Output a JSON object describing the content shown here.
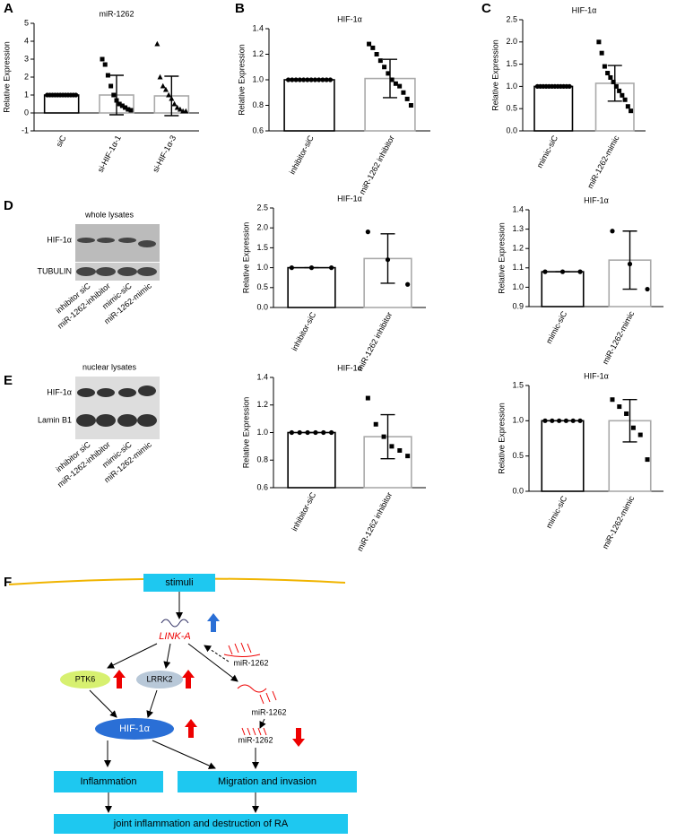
{
  "panel_labels": [
    "A",
    "B",
    "C",
    "D",
    "E",
    "F"
  ],
  "chart_data": [
    {
      "type": "bar",
      "title": "miR-1262",
      "y_label": "Relative Expression",
      "categories": [
        "siC",
        "si-HIF-1α-1",
        "si-HIF-1α-3"
      ],
      "values": [
        1,
        1,
        0.95
      ],
      "errors": [
        0,
        1.1,
        1.1
      ],
      "colors": [
        "#000000",
        "#aaaaaa",
        "#aaaaaa"
      ],
      "markers": [
        "circle",
        "square",
        "triangle"
      ],
      "points": [
        [
          1,
          1,
          1,
          1,
          1,
          1,
          1,
          1,
          1,
          1,
          1,
          1
        ],
        [
          3,
          2.7,
          2.1,
          1.5,
          1,
          0.7,
          0.5,
          0.4,
          0.3,
          0.2,
          0.15
        ],
        [
          3.85,
          2,
          1.5,
          1.3,
          1,
          0.8,
          0.5,
          0.3,
          0.2,
          0.1,
          0.1
        ]
      ],
      "ylim": [
        -1,
        5
      ],
      "yticks": [
        -1,
        0,
        1,
        2,
        3,
        4,
        5
      ]
    },
    {
      "type": "bar",
      "title": "HIF-1α",
      "y_label": "Relative Expression",
      "categories": [
        "inhibitor-siC",
        "miR-1262 inhibitor"
      ],
      "values": [
        1,
        1.01
      ],
      "errors": [
        0,
        0.15
      ],
      "colors": [
        "#000000",
        "#aaaaaa"
      ],
      "markers": [
        "circle",
        "square"
      ],
      "points": [
        [
          1,
          1,
          1,
          1,
          1,
          1,
          1,
          1,
          1,
          1,
          1,
          1
        ],
        [
          1.28,
          1.25,
          1.2,
          1.15,
          1.1,
          1.05,
          1,
          0.97,
          0.95,
          0.9,
          0.85,
          0.8
        ]
      ],
      "ylim": [
        0.6,
        1.4
      ],
      "yticks": [
        0.6,
        0.8,
        {
          "value": 1,
          "label": "1.0"
        },
        1.2,
        1.4
      ]
    },
    {
      "type": "bar",
      "title": "HIF-1α",
      "y_label": "Relative Expression",
      "categories": [
        "mimic-siC",
        "miR-1262-mimic"
      ],
      "values": [
        1,
        1.07
      ],
      "errors": [
        0,
        0.4
      ],
      "colors": [
        "#000000",
        "#aaaaaa"
      ],
      "markers": [
        "circle",
        "square"
      ],
      "points": [
        [
          1,
          1,
          1,
          1,
          1,
          1,
          1,
          1,
          1,
          1,
          1,
          1
        ],
        [
          2,
          1.75,
          1.45,
          1.3,
          1.2,
          1.1,
          1,
          0.9,
          0.8,
          0.7,
          0.55,
          0.45
        ]
      ],
      "ylim": [
        0,
        2.5
      ],
      "yticks": [
        {
          "value": 0,
          "label": "0.0"
        },
        0.5,
        {
          "value": 1,
          "label": "1.0"
        },
        1.5,
        {
          "value": 2,
          "label": "2.0"
        },
        2.5
      ]
    },
    {
      "type": "bar",
      "title": "HIF-1α",
      "y_label": "Relative Expression",
      "categories": [
        "inhibitor-siC",
        "miR-1262 inhibitor"
      ],
      "values": [
        1,
        1.23
      ],
      "errors": [
        0,
        0.62
      ],
      "colors": [
        "#000000",
        "#aaaaaa"
      ],
      "markers": [
        "circle",
        "circle"
      ],
      "points": [
        [
          1,
          1,
          1
        ],
        [
          1.9,
          1.2,
          0.58
        ]
      ],
      "ylim": [
        0,
        2.5
      ],
      "yticks": [
        {
          "value": 0,
          "label": "0.0"
        },
        0.5,
        {
          "value": 1,
          "label": "1.0"
        },
        1.5,
        {
          "value": 2,
          "label": "2.0"
        },
        2.5
      ]
    },
    {
      "type": "bar",
      "title": "HIF-1α",
      "y_label": "Relative Expression",
      "categories": [
        "mimic-siC",
        "miR-1262-mimic"
      ],
      "values": [
        1.08,
        1.14
      ],
      "errors": [
        0,
        0.15
      ],
      "colors": [
        "#000000",
        "#aaaaaa"
      ],
      "markers": [
        "circle",
        "circle"
      ],
      "points": [
        [
          1.08,
          1.08,
          1.08
        ],
        [
          1.29,
          1.12,
          0.99
        ]
      ],
      "ylim": [
        0.9,
        1.4
      ],
      "yticks": [
        0.9,
        {
          "value": 1,
          "label": "1.0"
        },
        1.1,
        1.2,
        1.3,
        1.4
      ]
    },
    {
      "type": "bar",
      "title": "HIF-1α",
      "y_label": "Relative Expression",
      "categories": [
        "inhibitor-siC",
        "miR-1262 inhibitor"
      ],
      "values": [
        1,
        0.97
      ],
      "errors": [
        0,
        0.16
      ],
      "colors": [
        "#000000",
        "#aaaaaa"
      ],
      "markers": [
        "circle",
        "square"
      ],
      "points": [
        [
          1,
          1,
          1,
          1,
          1,
          1
        ],
        [
          1.25,
          1.06,
          0.97,
          0.9,
          0.87,
          0.83
        ]
      ],
      "ylim": [
        0.6,
        1.4
      ],
      "yticks": [
        0.6,
        0.8,
        {
          "value": 1,
          "label": "1.0"
        },
        1.2,
        1.4
      ]
    },
    {
      "type": "bar",
      "title": "HIF-1α",
      "y_label": "Relative Expression",
      "categories": [
        "mimic-siC",
        "miR-1262-mimic"
      ],
      "values": [
        1,
        1
      ],
      "errors": [
        0,
        0.3
      ],
      "colors": [
        "#000000",
        "#aaaaaa"
      ],
      "markers": [
        "circle",
        "square"
      ],
      "points": [
        [
          1,
          1,
          1,
          1,
          1,
          1
        ],
        [
          1.3,
          1.2,
          1.1,
          0.9,
          0.8,
          0.45
        ]
      ],
      "ylim": [
        0,
        1.5
      ],
      "yticks": [
        {
          "value": 0,
          "label": "0.0"
        },
        0.5,
        {
          "value": 1,
          "label": "1.0"
        },
        1.5
      ]
    }
  ],
  "blots": [
    {
      "title": "whole lysates",
      "rows": [
        "HIF-1α",
        "TUBULIN"
      ],
      "lanes": [
        "inhibitor siC",
        "miR-1262-inhibitor",
        "mimic-siC",
        "miR-1262-mimic"
      ]
    },
    {
      "title": "nuclear lysates",
      "rows": [
        "HIF-1α",
        "Lamin B1"
      ],
      "lanes": [
        "inhibitor siC",
        "miR-1262-inhibitor",
        "mimic-siC",
        "miR-1262-mimic"
      ]
    }
  ],
  "diagram": {
    "stimuli": "stimuli",
    "link_a": "LINK-A",
    "mir_labels": [
      "miR-1262",
      "miR-1262",
      "miR-1262"
    ],
    "ptk6": "PTK6",
    "lrrk2": "LRRK2",
    "hif": "HIF-1α",
    "inflammation": "Inflammation",
    "migration": "Migration and invasion",
    "outcome": "joint inflammation and destruction of RA"
  }
}
